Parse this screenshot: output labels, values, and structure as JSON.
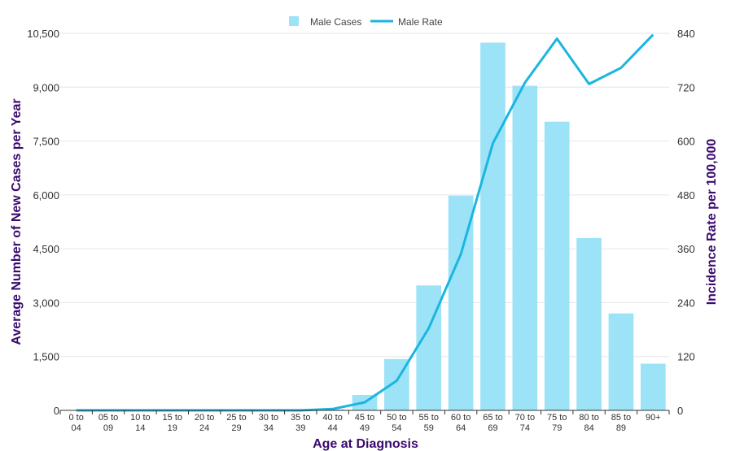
{
  "chart_data": {
    "type": "bar",
    "categories": [
      [
        "0 to",
        "04"
      ],
      [
        "05 to",
        "09"
      ],
      [
        "10 to",
        "14"
      ],
      [
        "15 to",
        "19"
      ],
      [
        "20 to",
        "24"
      ],
      [
        "25 to",
        "29"
      ],
      [
        "30 to",
        "34"
      ],
      [
        "35 to",
        "39"
      ],
      [
        "40 to",
        "44"
      ],
      [
        "45 to",
        "49"
      ],
      [
        "50 to",
        "54"
      ],
      [
        "55 to",
        "59"
      ],
      [
        "60 to",
        "64"
      ],
      [
        "65 to",
        "69"
      ],
      [
        "70 to",
        "74"
      ],
      [
        "75 to",
        "79"
      ],
      [
        "80 to",
        "84"
      ],
      [
        "85 to",
        "89"
      ],
      [
        "90+",
        ""
      ]
    ],
    "series": [
      {
        "name": "Male Cases",
        "kind": "bar",
        "axis": "left",
        "color": "#9de3f7",
        "values": [
          0,
          0,
          0,
          0,
          0,
          0,
          0,
          0,
          30,
          430,
          1430,
          3480,
          5980,
          10240,
          9040,
          8040,
          4800,
          2700,
          1300
        ]
      },
      {
        "name": "Male Rate",
        "kind": "line",
        "axis": "right",
        "color": "#1bb5e0",
        "values": [
          0,
          0,
          0,
          0,
          0,
          0,
          0,
          0,
          3,
          18,
          66,
          183,
          348,
          595,
          730,
          828,
          727,
          763,
          837
        ]
      }
    ],
    "xlabel": "Age at Diagnosis",
    "ylabel": "Average Number of New Cases per Year",
    "y2label": "Incidence Rate per 100,000",
    "ylim": [
      0,
      10500
    ],
    "y2lim": [
      0,
      840
    ],
    "yticks": [
      "0",
      "1,500",
      "3,000",
      "4,500",
      "6,000",
      "7,500",
      "9,000",
      "10,500"
    ],
    "y2ticks": [
      "0",
      "120",
      "240",
      "360",
      "480",
      "600",
      "720",
      "840"
    ],
    "grid": true,
    "legend_position": "top-center"
  }
}
